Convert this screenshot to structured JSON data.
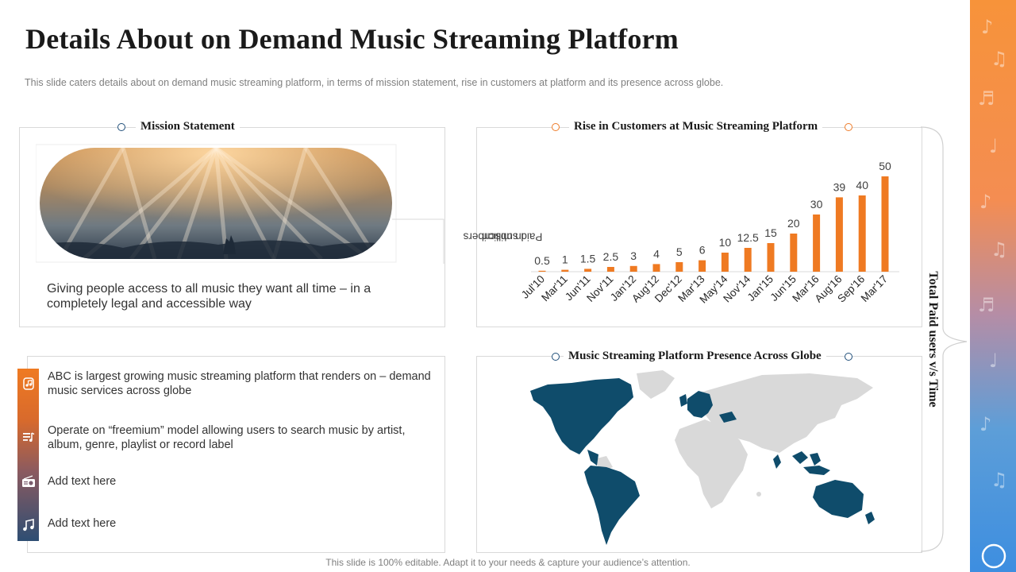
{
  "header": {
    "title": "Details About on Demand Music Streaming Platform",
    "subtitle": "This slide caters details about on demand music streaming platform, in terms of mission statement, rise in customers at platform and its presence across globe."
  },
  "mission": {
    "title": "Mission Statement",
    "text": "Giving people access to all music they want all time – in a completely legal and accessible way"
  },
  "features": [
    {
      "icon": "music-app-icon",
      "text": "ABC is largest growing music streaming platform that renders on – demand music services across globe"
    },
    {
      "icon": "playlist-icon",
      "text": "Operate on “freemium” model allowing users to search music by artist, album, genre, playlist or record label"
    },
    {
      "icon": "radio-icon",
      "text": "Add text here"
    },
    {
      "icon": "music-note-icon",
      "text": "Add text here"
    }
  ],
  "chart_section": {
    "title": "Rise in Customers at Music Streaming  Platform"
  },
  "map_section": {
    "title": "Music Streaming  Platform  Presence Across Globe"
  },
  "side_label": "Total Paid users v/s Time",
  "footer": "This slide is 100% editable. Adapt it to your needs & capture your audience’s attention.",
  "colors": {
    "accent_orange": "#ef7a22",
    "navy": "#1f4e79",
    "map_highlight": "#0f4c6b",
    "map_base": "#d9d9d9"
  },
  "chart_data": {
    "type": "bar",
    "title": "Rise in Customers at Music Streaming  Platform",
    "ylabel": "Paid subscribers in million",
    "ylabel_lines": [
      "Paid subscribers",
      "in million"
    ],
    "xlabel": "",
    "categories": [
      "Jul'10",
      "Mar'11",
      "Jun'11",
      "Nov'11",
      "Jan'12",
      "Aug'12",
      "Dec'12",
      "Mar'13",
      "May'14",
      "Nov'14",
      "Jan'15",
      "Jun'15",
      "Mar'16",
      "Aug'16",
      "Sep'16",
      "Mar'17"
    ],
    "values": [
      0.5,
      1,
      1.5,
      2.5,
      3,
      4,
      5,
      6,
      10,
      12.5,
      15,
      20,
      30,
      39,
      40,
      50
    ],
    "ylim": [
      0,
      50
    ],
    "color": "#ef7a22",
    "grid": false,
    "legend": "none"
  }
}
